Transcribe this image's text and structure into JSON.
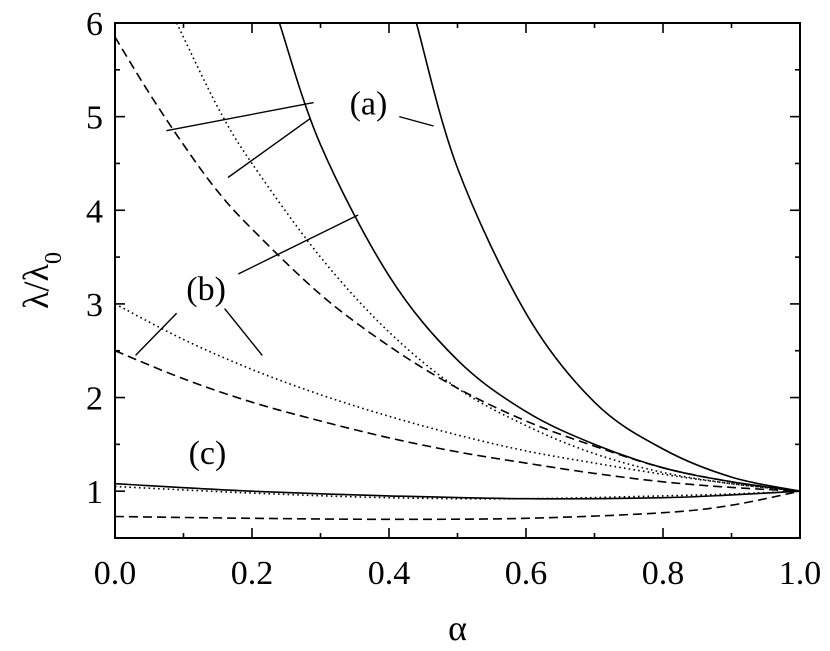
{
  "chart_data": {
    "type": "line",
    "xlabel": "α",
    "ylabel_main": "λ/λ",
    "ylabel_sub": "0",
    "xlim": [
      0.0,
      1.0
    ],
    "ylim": [
      0.5,
      6.0
    ],
    "xticks": [
      {
        "value": 0.0,
        "label": "0.0"
      },
      {
        "value": 0.2,
        "label": "0.2"
      },
      {
        "value": 0.4,
        "label": "0.4"
      },
      {
        "value": 0.6,
        "label": "0.6"
      },
      {
        "value": 0.8,
        "label": "0.8"
      },
      {
        "value": 1.0,
        "label": "1.0"
      }
    ],
    "yticks": [
      {
        "value": 1,
        "label": "1"
      },
      {
        "value": 2,
        "label": "2"
      },
      {
        "value": 3,
        "label": "3"
      },
      {
        "value": 4,
        "label": "4"
      },
      {
        "value": 5,
        "label": "5"
      },
      {
        "value": 6,
        "label": "6"
      }
    ],
    "grid": false,
    "series": [
      {
        "style": "solid",
        "x": [
          0.24,
          0.3,
          0.4,
          0.5,
          0.6,
          0.7,
          0.8,
          0.9,
          1.0
        ],
        "y": [
          6.0,
          4.7,
          3.3,
          2.4,
          1.85,
          1.5,
          1.25,
          1.1,
          1.0
        ]
      },
      {
        "style": "solid",
        "x": [
          0.44,
          0.5,
          0.6,
          0.7,
          0.8,
          0.9,
          1.0
        ],
        "y": [
          6.0,
          4.45,
          2.9,
          1.95,
          1.45,
          1.15,
          1.0
        ]
      },
      {
        "style": "solid",
        "x": [
          0.0,
          0.2,
          0.4,
          0.6,
          0.8,
          0.9,
          1.0
        ],
        "y": [
          1.08,
          1.0,
          0.95,
          0.92,
          0.93,
          0.96,
          1.0
        ]
      },
      {
        "style": "dotted",
        "x": [
          0.09,
          0.15,
          0.2,
          0.3,
          0.4,
          0.5,
          0.6,
          0.7,
          0.8,
          0.9,
          1.0
        ],
        "y": [
          6.0,
          5.1,
          4.5,
          3.5,
          2.7,
          2.1,
          1.7,
          1.4,
          1.2,
          1.08,
          1.0
        ]
      },
      {
        "style": "dotted",
        "x": [
          0.0,
          0.1,
          0.2,
          0.3,
          0.4,
          0.5,
          0.6,
          0.7,
          0.8,
          0.9,
          1.0
        ],
        "y": [
          3.0,
          2.62,
          2.3,
          2.03,
          1.8,
          1.6,
          1.43,
          1.3,
          1.18,
          1.08,
          1.0
        ]
      },
      {
        "style": "dotted",
        "x": [
          0.0,
          0.2,
          0.4,
          0.6,
          0.8,
          0.9,
          1.0
        ],
        "y": [
          1.05,
          0.98,
          0.93,
          0.92,
          0.95,
          0.97,
          1.0
        ]
      },
      {
        "style": "dashed",
        "x": [
          0.0,
          0.05,
          0.1,
          0.15,
          0.2,
          0.3,
          0.4,
          0.5,
          0.6,
          0.7,
          0.8,
          0.9,
          1.0
        ],
        "y": [
          5.85,
          5.25,
          4.7,
          4.2,
          3.8,
          3.1,
          2.55,
          2.1,
          1.75,
          1.48,
          1.25,
          1.1,
          1.0
        ]
      },
      {
        "style": "dashed",
        "x": [
          0.0,
          0.1,
          0.2,
          0.3,
          0.4,
          0.5,
          0.6,
          0.7,
          0.8,
          0.9,
          1.0
        ],
        "y": [
          2.5,
          2.2,
          1.95,
          1.75,
          1.57,
          1.42,
          1.3,
          1.19,
          1.1,
          1.04,
          1.0
        ]
      },
      {
        "style": "dashed",
        "x": [
          0.0,
          0.2,
          0.4,
          0.6,
          0.8,
          0.9,
          1.0
        ],
        "y": [
          0.73,
          0.71,
          0.7,
          0.71,
          0.77,
          0.85,
          1.0
        ]
      }
    ],
    "annotations": [
      {
        "label": "(a)",
        "x": 0.37,
        "y": 5.15,
        "leaders": [
          [
            0.29,
            5.15,
            0.075,
            4.85
          ],
          [
            0.285,
            4.98,
            0.165,
            4.35
          ],
          [
            0.415,
            5.0,
            0.465,
            4.9
          ]
        ]
      },
      {
        "label": "(b)",
        "x": 0.133,
        "y": 3.17,
        "leaders": [
          [
            0.18,
            3.32,
            0.355,
            3.95
          ],
          [
            0.09,
            2.9,
            0.03,
            2.45
          ],
          [
            0.16,
            2.95,
            0.215,
            2.45
          ]
        ]
      },
      {
        "label": "(c)",
        "x": 0.135,
        "y": 1.42,
        "leaders": []
      }
    ]
  }
}
